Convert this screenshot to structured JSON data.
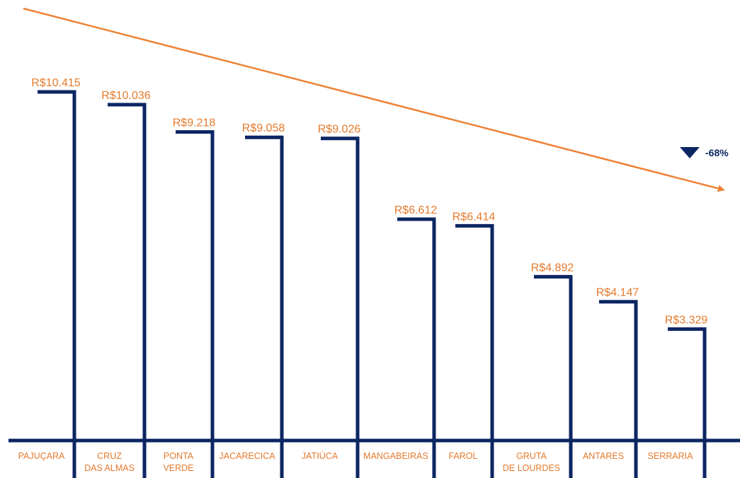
{
  "chart_data": {
    "type": "bar",
    "title": "",
    "xlabel": "",
    "ylabel": "",
    "categories": [
      [
        "PAJUÇARA"
      ],
      [
        "CRUZ",
        "DAS ALMAS"
      ],
      [
        "PONTA",
        "VERDE"
      ],
      [
        "JACARECICA"
      ],
      [
        "JATIÚCA"
      ],
      [
        "MANGABEIRAS"
      ],
      [
        "FAROL"
      ],
      [
        "GRUTA",
        "DE LOURDES"
      ],
      [
        "ANTARES"
      ],
      [
        "SERRARIA"
      ]
    ],
    "values": [
      10415,
      10036,
      9218,
      9058,
      9026,
      6612,
      6414,
      4892,
      4147,
      3329
    ],
    "value_labels": [
      "R$10.415",
      "R$10.036",
      "R$9.218",
      "R$9.058",
      "R$9.026",
      "R$6.612",
      "R$6.414",
      "R$4.892",
      "R$4.147",
      "R$3.329"
    ],
    "ylim": [
      0,
      10415
    ],
    "grid": false,
    "legend": "none",
    "trend": {
      "direction": "down",
      "change_label": "-68%"
    },
    "colors": {
      "bars": "#0b2663",
      "labels": "#e47a2c",
      "trend_arrow": "#ee8236",
      "change_text": "#0b2663"
    }
  }
}
